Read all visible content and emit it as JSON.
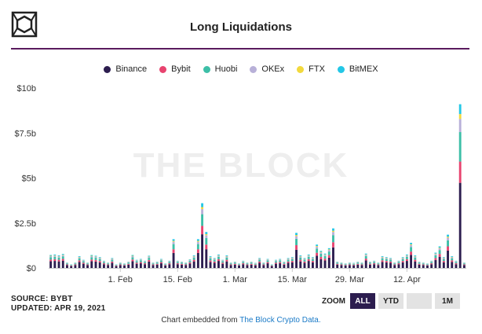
{
  "header": {
    "title": "Long Liquidations"
  },
  "watermark": "THE BLOCK",
  "footer": {
    "source": "SOURCE: BYBT",
    "updated": "UPDATED: APR 19, 2021",
    "zoom_label": "ZOOM",
    "zoom_buttons": [
      "ALL",
      "YTD",
      "",
      "1M"
    ],
    "embed_text": "Chart embedded from",
    "embed_link": "The Block Crypto Data."
  },
  "chart_data": {
    "type": "bar",
    "stacked": true,
    "title": "Long Liquidations",
    "ylim": [
      0,
      10
    ],
    "yticks": [
      0,
      2.5,
      5,
      7.5,
      10
    ],
    "ytick_labels": [
      "$0",
      "$2.5b",
      "$5b",
      "$7.5b",
      "$10b"
    ],
    "x_start": "2021-01-15",
    "xtick_labels": [
      "1. Feb",
      "15. Feb",
      "1. Mar",
      "15. Mar",
      "29. Mar",
      "12. Apr"
    ],
    "xtick_dates": [
      "2021-02-01",
      "2021-02-15",
      "2021-03-01",
      "2021-03-15",
      "2021-03-29",
      "2021-04-12"
    ],
    "legend": "top-center",
    "grid": false,
    "series": [
      {
        "name": "Binance",
        "color": "#2c1d4f"
      },
      {
        "name": "Bybit",
        "color": "#e8436f"
      },
      {
        "name": "Huobi",
        "color": "#3dbfa7"
      },
      {
        "name": "OKEx",
        "color": "#b8b0d8"
      },
      {
        "name": "FTX",
        "color": "#f2d93d"
      },
      {
        "name": "BitMEX",
        "color": "#23c7e6"
      }
    ],
    "totals": [
      0.72,
      0.75,
      0.7,
      0.78,
      0.3,
      0.2,
      0.3,
      0.65,
      0.45,
      0.3,
      0.72,
      0.68,
      0.6,
      0.4,
      0.3,
      0.55,
      0.2,
      0.3,
      0.25,
      0.35,
      0.72,
      0.45,
      0.5,
      0.4,
      0.68,
      0.3,
      0.35,
      0.5,
      0.25,
      0.4,
      1.6,
      0.4,
      0.35,
      0.3,
      0.48,
      0.7,
      1.6,
      3.6,
      2.0,
      0.65,
      0.55,
      0.75,
      0.45,
      0.7,
      0.3,
      0.35,
      0.25,
      0.4,
      0.3,
      0.35,
      0.28,
      0.55,
      0.3,
      0.5,
      0.2,
      0.45,
      0.5,
      0.35,
      0.55,
      0.6,
      1.95,
      0.7,
      0.55,
      0.75,
      0.6,
      1.3,
      0.95,
      0.8,
      1.1,
      2.2,
      0.35,
      0.3,
      0.25,
      0.3,
      0.28,
      0.35,
      0.3,
      0.8,
      0.35,
      0.4,
      0.3,
      0.65,
      0.6,
      0.55,
      0.3,
      0.4,
      0.6,
      0.75,
      1.4,
      0.7,
      0.35,
      0.3,
      0.25,
      0.4,
      0.85,
      1.2,
      0.6,
      1.85,
      0.65,
      0.4,
      9.1,
      0.3
    ]
  }
}
